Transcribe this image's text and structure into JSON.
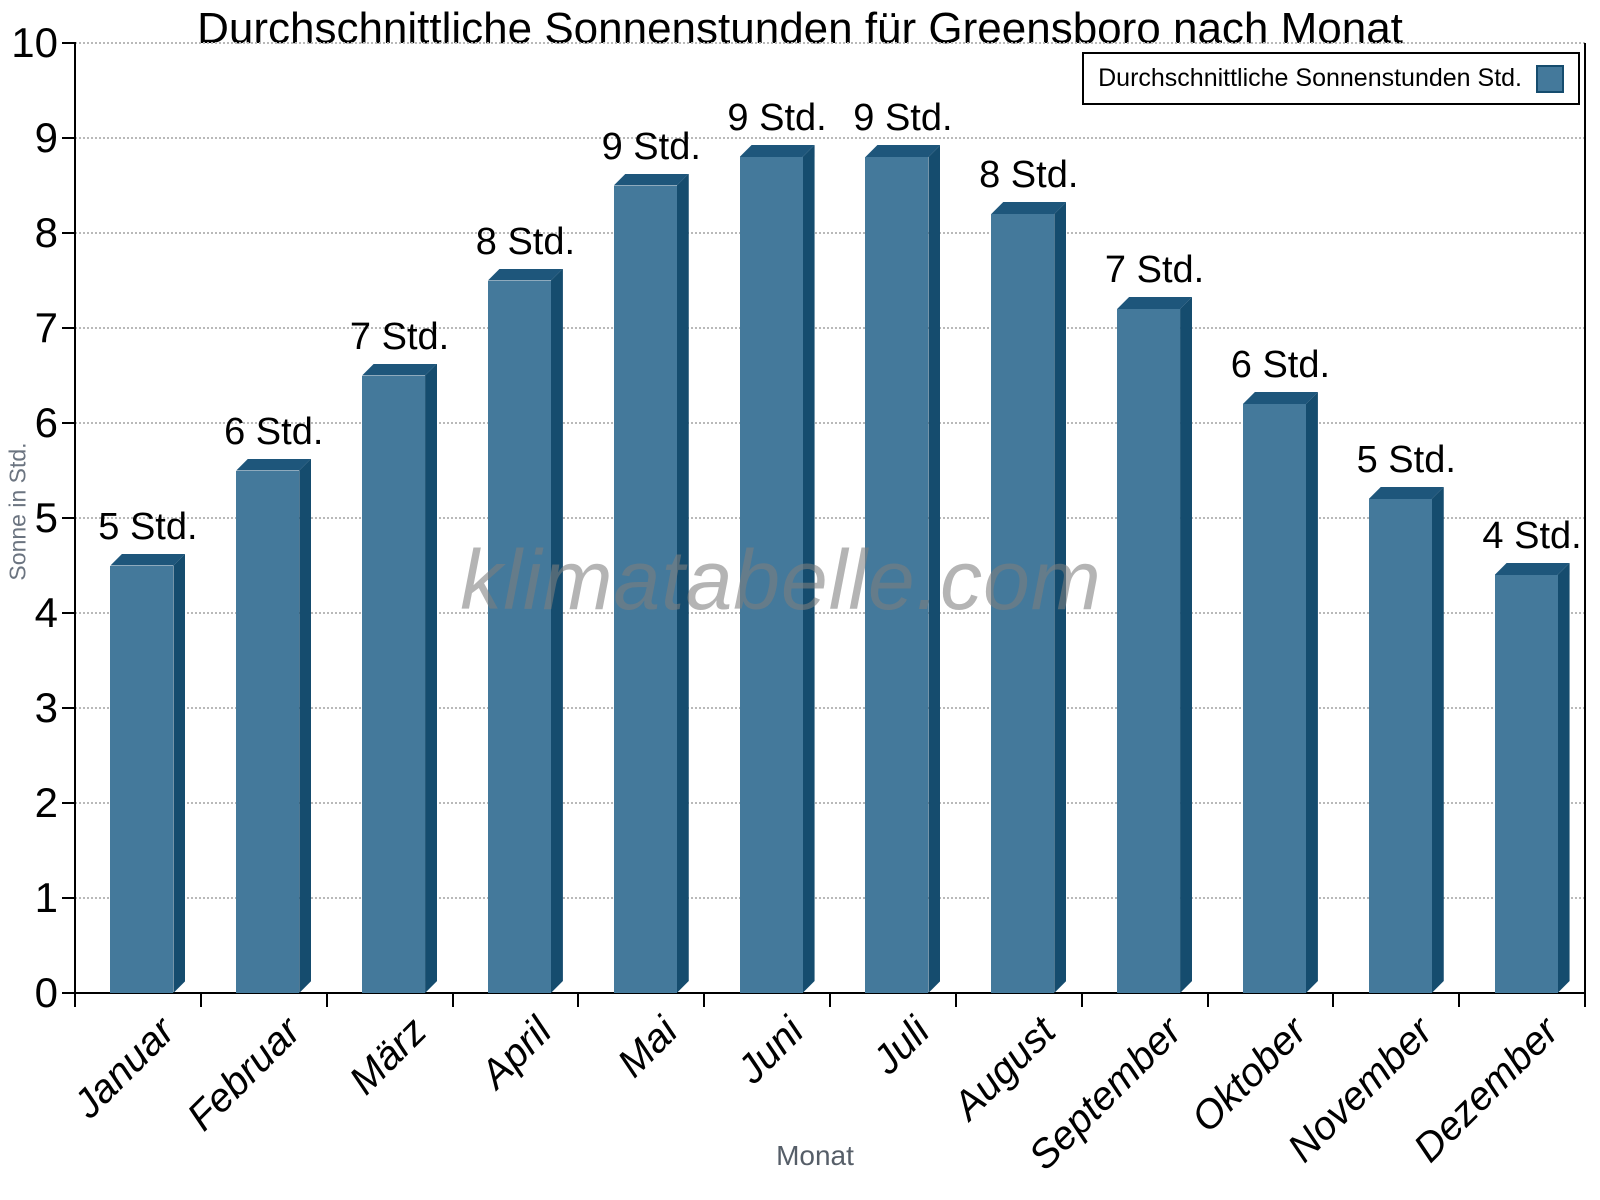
{
  "title": "Durchschnittliche Sonnenstunden für Greensboro nach Monat",
  "watermark": "klimatabelle.com",
  "chart_data": {
    "type": "bar",
    "title": "Durchschnittliche Sonnenstunden für Greensboro nach Monat",
    "categories": [
      "Januar",
      "Februar",
      "März",
      "April",
      "Mai",
      "Juni",
      "Juli",
      "August",
      "September",
      "Oktober",
      "November",
      "Dezember"
    ],
    "values": [
      4.5,
      5.5,
      6.5,
      7.5,
      8.5,
      8.8,
      8.8,
      8.2,
      7.2,
      6.2,
      5.2,
      4.4
    ],
    "bar_labels": [
      "5 Std.",
      "6 Std.",
      "7 Std.",
      "8 Std.",
      "9 Std.",
      "9 Std.",
      "9 Std.",
      "8 Std.",
      "7 Std.",
      "6 Std.",
      "5 Std.",
      "4 Std."
    ],
    "xlabel": "Monat",
    "ylabel": "Sonne in Std.",
    "ylim": [
      0,
      10
    ],
    "yticks": [
      0,
      1,
      2,
      3,
      4,
      5,
      6,
      7,
      8,
      9,
      10
    ],
    "grid": "horizontal dotted",
    "legend": [
      "Durchschnittliche Sonnenstunden Std."
    ],
    "legend_position": "top-right",
    "colors": {
      "bar_face": "#44799B",
      "bar_top": "#1E567B",
      "bar_side": "#154C6E",
      "grid": "#b9b9b9",
      "axis": "#000000",
      "muted_text": "#6b7480",
      "watermark_text": "#7d7d7d"
    }
  }
}
